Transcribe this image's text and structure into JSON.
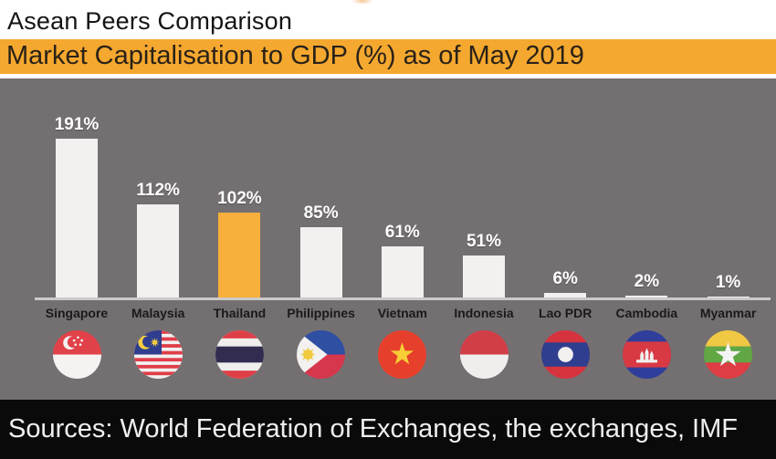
{
  "header": {
    "title": "Asean Peers Comparison"
  },
  "banner": {
    "label": "Market Capitalisation to GDP (%) as of May 2019"
  },
  "footer": {
    "source": "Sources: World Federation of Exchanges, the exchanges, IMF"
  },
  "colors": {
    "accent": "#F5A82F",
    "chart_background": "#747071",
    "bar_default": "#F2F1F0",
    "bar_highlight": "#F8AF3C",
    "axis_line": "#CCC9C8",
    "source_background": "#0B0A0A",
    "value_label_text": "#FFFFFF",
    "category_label_text": "#1A1A1A"
  },
  "chart_data": {
    "type": "bar",
    "title": "Market Capitalisation to GDP (%) as of May 2019",
    "unit": "%",
    "categories": [
      "Singapore",
      "Malaysia",
      "Thailand",
      "Philippines",
      "Vietnam",
      "Indonesia",
      "Lao PDR",
      "Cambodia",
      "Myanmar"
    ],
    "values": [
      191,
      112,
      102,
      85,
      61,
      51,
      6,
      2,
      1
    ],
    "value_labels": [
      "191%",
      "112%",
      "102%",
      "85%",
      "61%",
      "51%",
      "6%",
      "2%",
      "1%"
    ],
    "flags": [
      "singapore-flag-icon",
      "malaysia-flag-icon",
      "thailand-flag-icon",
      "philippines-flag-icon",
      "vietnam-flag-icon",
      "indonesia-flag-icon",
      "laos-flag-icon",
      "cambodia-flag-icon",
      "myanmar-flag-icon"
    ],
    "highlighted_category": "Thailand",
    "ylim": [
      0,
      200
    ],
    "grid": false,
    "legend": false,
    "xlabel": "",
    "ylabel": "Market capitalisation to GDP (%)"
  }
}
